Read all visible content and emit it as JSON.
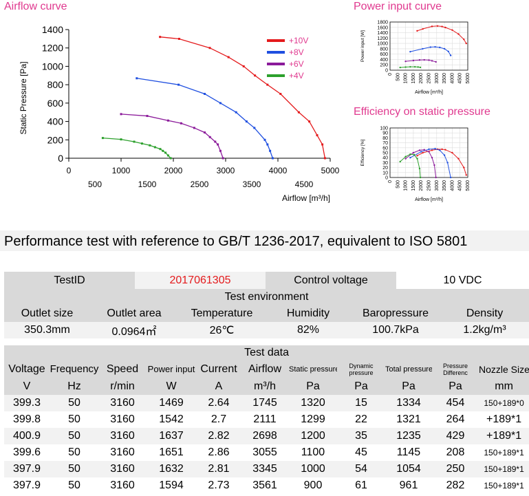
{
  "charts": {
    "airflow_title": "Airflow curve",
    "power_title": "Power input curve",
    "efficiency_title": "Efficiency on static pressure"
  },
  "chart_data": [
    {
      "type": "line",
      "title": "Airflow curve",
      "xlabel": "Airflow [m³/h]",
      "ylabel": "Static Pressure [Pa]",
      "xlim": [
        0,
        5000
      ],
      "ylim": [
        0,
        1400
      ],
      "x_ticks_upper": [
        "0",
        "1000",
        "2000",
        "3000",
        "4000",
        "5000"
      ],
      "x_ticks_lower": [
        "500",
        "1500",
        "2500",
        "3500",
        "4500"
      ],
      "y_ticks": [
        "0",
        "200",
        "400",
        "600",
        "800",
        "1000",
        "1200",
        "1400"
      ],
      "legend_position": "top-right",
      "series": [
        {
          "name": "+10V",
          "color": "#e41a1c",
          "x": [
            1745,
            2111,
            2698,
            3055,
            3345,
            3561,
            3800,
            4050,
            4400,
            4600,
            4750,
            4850,
            4900
          ],
          "y": [
            1320,
            1299,
            1200,
            1100,
            1000,
            900,
            800,
            700,
            500,
            400,
            250,
            150,
            0
          ]
        },
        {
          "name": "+8V",
          "color": "#1f4fe0",
          "x": [
            1300,
            2100,
            2600,
            2900,
            3200,
            3400,
            3550,
            3750,
            3800,
            3850,
            3900
          ],
          "y": [
            870,
            800,
            700,
            600,
            500,
            400,
            330,
            200,
            150,
            80,
            0
          ]
        },
        {
          "name": "+6V",
          "color": "#8b1a9a",
          "x": [
            1000,
            1500,
            1900,
            2150,
            2400,
            2600,
            2700,
            2800,
            2850,
            2900,
            2950
          ],
          "y": [
            480,
            460,
            410,
            380,
            330,
            280,
            230,
            180,
            150,
            80,
            0
          ]
        },
        {
          "name": "+4V",
          "color": "#2ca02c",
          "x": [
            650,
            1000,
            1250,
            1400,
            1550,
            1650,
            1750,
            1800,
            1850,
            1900,
            1950
          ],
          "y": [
            220,
            205,
            180,
            160,
            140,
            120,
            100,
            80,
            60,
            30,
            0
          ]
        }
      ]
    },
    {
      "type": "line",
      "title": "Power input curve",
      "xlabel": "Airflow [m³/h]",
      "ylabel": "Power input [W]",
      "xlim": [
        0,
        5000
      ],
      "ylim": [
        0,
        1800
      ],
      "x_ticks": [
        "0",
        "500",
        "1000",
        "1500",
        "2000",
        "2500",
        "3000",
        "3500",
        "4000",
        "4500",
        "5000"
      ],
      "y_ticks": [
        "0",
        "200",
        "400",
        "600",
        "800",
        "1000",
        "1200",
        "1400",
        "1600",
        "1800"
      ],
      "series": [
        {
          "name": "+10V",
          "color": "#e41a1c",
          "x": [
            1745,
            2111,
            2698,
            3055,
            3345,
            3561,
            4000,
            4400,
            4750,
            4900
          ],
          "y": [
            1469,
            1542,
            1637,
            1651,
            1632,
            1594,
            1500,
            1350,
            1150,
            1000
          ]
        },
        {
          "name": "+8V",
          "color": "#1f4fe0",
          "x": [
            1300,
            2100,
            2600,
            2900,
            3200,
            3500,
            3750,
            3900
          ],
          "y": [
            690,
            800,
            860,
            870,
            850,
            800,
            700,
            550
          ]
        },
        {
          "name": "+6V",
          "color": "#8b1a9a",
          "x": [
            1000,
            1500,
            1900,
            2200,
            2500,
            2700,
            2950
          ],
          "y": [
            330,
            360,
            380,
            385,
            375,
            350,
            310
          ]
        },
        {
          "name": "+4V",
          "color": "#2ca02c",
          "x": [
            650,
            1000,
            1300,
            1600,
            1800,
            1950
          ],
          "y": [
            100,
            115,
            125,
            125,
            118,
            105
          ]
        }
      ]
    },
    {
      "type": "line",
      "title": "Efficiency on static pressure",
      "xlabel": "Airflow [m³/h]",
      "ylabel": "Efficiency [%]",
      "xlim": [
        0,
        5000
      ],
      "ylim": [
        0,
        100
      ],
      "x_ticks": [
        "0",
        "500",
        "1000",
        "1500",
        "2000",
        "2500",
        "3000",
        "3500",
        "4000",
        "4500",
        "5000"
      ],
      "y_ticks": [
        "0",
        "10",
        "20",
        "30",
        "40",
        "50",
        "60",
        "70",
        "80",
        "90",
        "100"
      ],
      "series": [
        {
          "name": "+10V",
          "color": "#e41a1c",
          "x": [
            1745,
            2111,
            2698,
            3055,
            3345,
            3561,
            4000,
            4400,
            4750,
            4900
          ],
          "y": [
            44,
            50,
            55,
            57,
            57,
            56,
            50,
            38,
            20,
            5
          ]
        },
        {
          "name": "+8V",
          "color": "#1f4fe0",
          "x": [
            1300,
            2000,
            2500,
            2900,
            3200,
            3500,
            3700,
            3900
          ],
          "y": [
            40,
            52,
            57,
            58,
            55,
            45,
            30,
            0
          ]
        },
        {
          "name": "+6V",
          "color": "#8b1a9a",
          "x": [
            1000,
            1500,
            1900,
            2200,
            2500,
            2700,
            2850,
            2950
          ],
          "y": [
            38,
            50,
            55,
            56,
            52,
            40,
            25,
            0
          ]
        },
        {
          "name": "+4V",
          "color": "#2ca02c",
          "x": [
            650,
            1000,
            1300,
            1550,
            1750,
            1900,
            1950
          ],
          "y": [
            32,
            42,
            47,
            46,
            38,
            18,
            0
          ]
        }
      ]
    }
  ],
  "performance_note": "Performance test with reference to GB/T 1236-2017, equivalent to ISO 5801",
  "info": {
    "test_id_label": "TestID",
    "test_id_value": "2017061305",
    "control_voltage_label": "Control voltage",
    "control_voltage_value": "10 VDC",
    "env_title": "Test environment",
    "env_headers": [
      "Outlet size",
      "Outlet area",
      "Temperature",
      "Humidity",
      "Baropressure",
      "Density"
    ],
    "env_values": [
      "350.3mm",
      "0.0964㎡",
      "26℃",
      "82%",
      "100.7kPa",
      "1.2kg/m³"
    ]
  },
  "test_data": {
    "title": "Test data",
    "headers": [
      "Voltage",
      "Frequency",
      "Speed",
      "Power input",
      "Current",
      "Airflow",
      "Static pressure",
      "Dynamic pressure",
      "Total pressure",
      "Pressure Differenc",
      "Nozzle Size"
    ],
    "units": [
      "V",
      "Hz",
      "r/min",
      "W",
      "A",
      "m³/h",
      "Pa",
      "Pa",
      "Pa",
      "Pa",
      "mm"
    ],
    "rows": [
      [
        "399.3",
        "50",
        "3160",
        "1469",
        "2.64",
        "1745",
        "1320",
        "15",
        "1334",
        "454",
        "150+189*0"
      ],
      [
        "399.8",
        "50",
        "3160",
        "1542",
        "2.7",
        "2111",
        "1299",
        "22",
        "1321",
        "264",
        "+189*1"
      ],
      [
        "400.9",
        "50",
        "3160",
        "1637",
        "2.82",
        "2698",
        "1200",
        "35",
        "1235",
        "429",
        "+189*1"
      ],
      [
        "399.6",
        "50",
        "3160",
        "1651",
        "2.86",
        "3055",
        "1100",
        "45",
        "1145",
        "208",
        "150+189*1"
      ],
      [
        "397.9",
        "50",
        "3160",
        "1632",
        "2.81",
        "3345",
        "1000",
        "54",
        "1054",
        "250",
        "150+189*1"
      ],
      [
        "397.9",
        "50",
        "3160",
        "1594",
        "2.73",
        "3561",
        "900",
        "61",
        "961",
        "282",
        "150+189*1"
      ]
    ]
  }
}
